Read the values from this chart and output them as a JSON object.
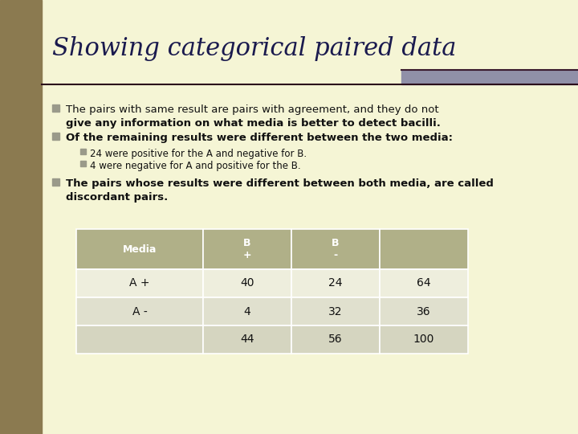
{
  "title": "Showing categorical paired data",
  "title_color": "#1a1a4e",
  "bg_color": "#f5f5d5",
  "left_bar_color": "#8b7a50",
  "title_fontsize": 22,
  "bullet_color": "#9a9a8a",
  "text_color": "#111111",
  "bullet1_line1": "The pairs with same result are pairs with agreement, and they do not",
  "bullet1_line2": "give any information on what media is better to detect bacilli.",
  "bullet2": "Of the remaining results were different between the two media:",
  "subbullet1": "24 were positive for the A and negative for B.",
  "subbullet2": "4 were negative for A and positive for the B.",
  "bullet3_line1": "The pairs whose results were different between both media, are called",
  "bullet3_line2": "discordant pairs.",
  "table_header_bg": "#b0b088",
  "table_header_text": "#ffffff",
  "table_row1_bg": "#eeeedd",
  "table_row2_bg": "#e0e0ce",
  "table_row3_bg": "#d5d5c0",
  "table_data": [
    [
      "Media",
      "B\n+",
      "B\n-",
      ""
    ],
    [
      "A +",
      "40",
      "24",
      "64"
    ],
    [
      "A -",
      "4",
      "32",
      "36"
    ],
    [
      "",
      "44",
      "56",
      "100"
    ]
  ],
  "separator_color": "#2a0a1a",
  "accent_bar_color": "#9090a8",
  "accent_bar_dark": "#3a1a2e"
}
